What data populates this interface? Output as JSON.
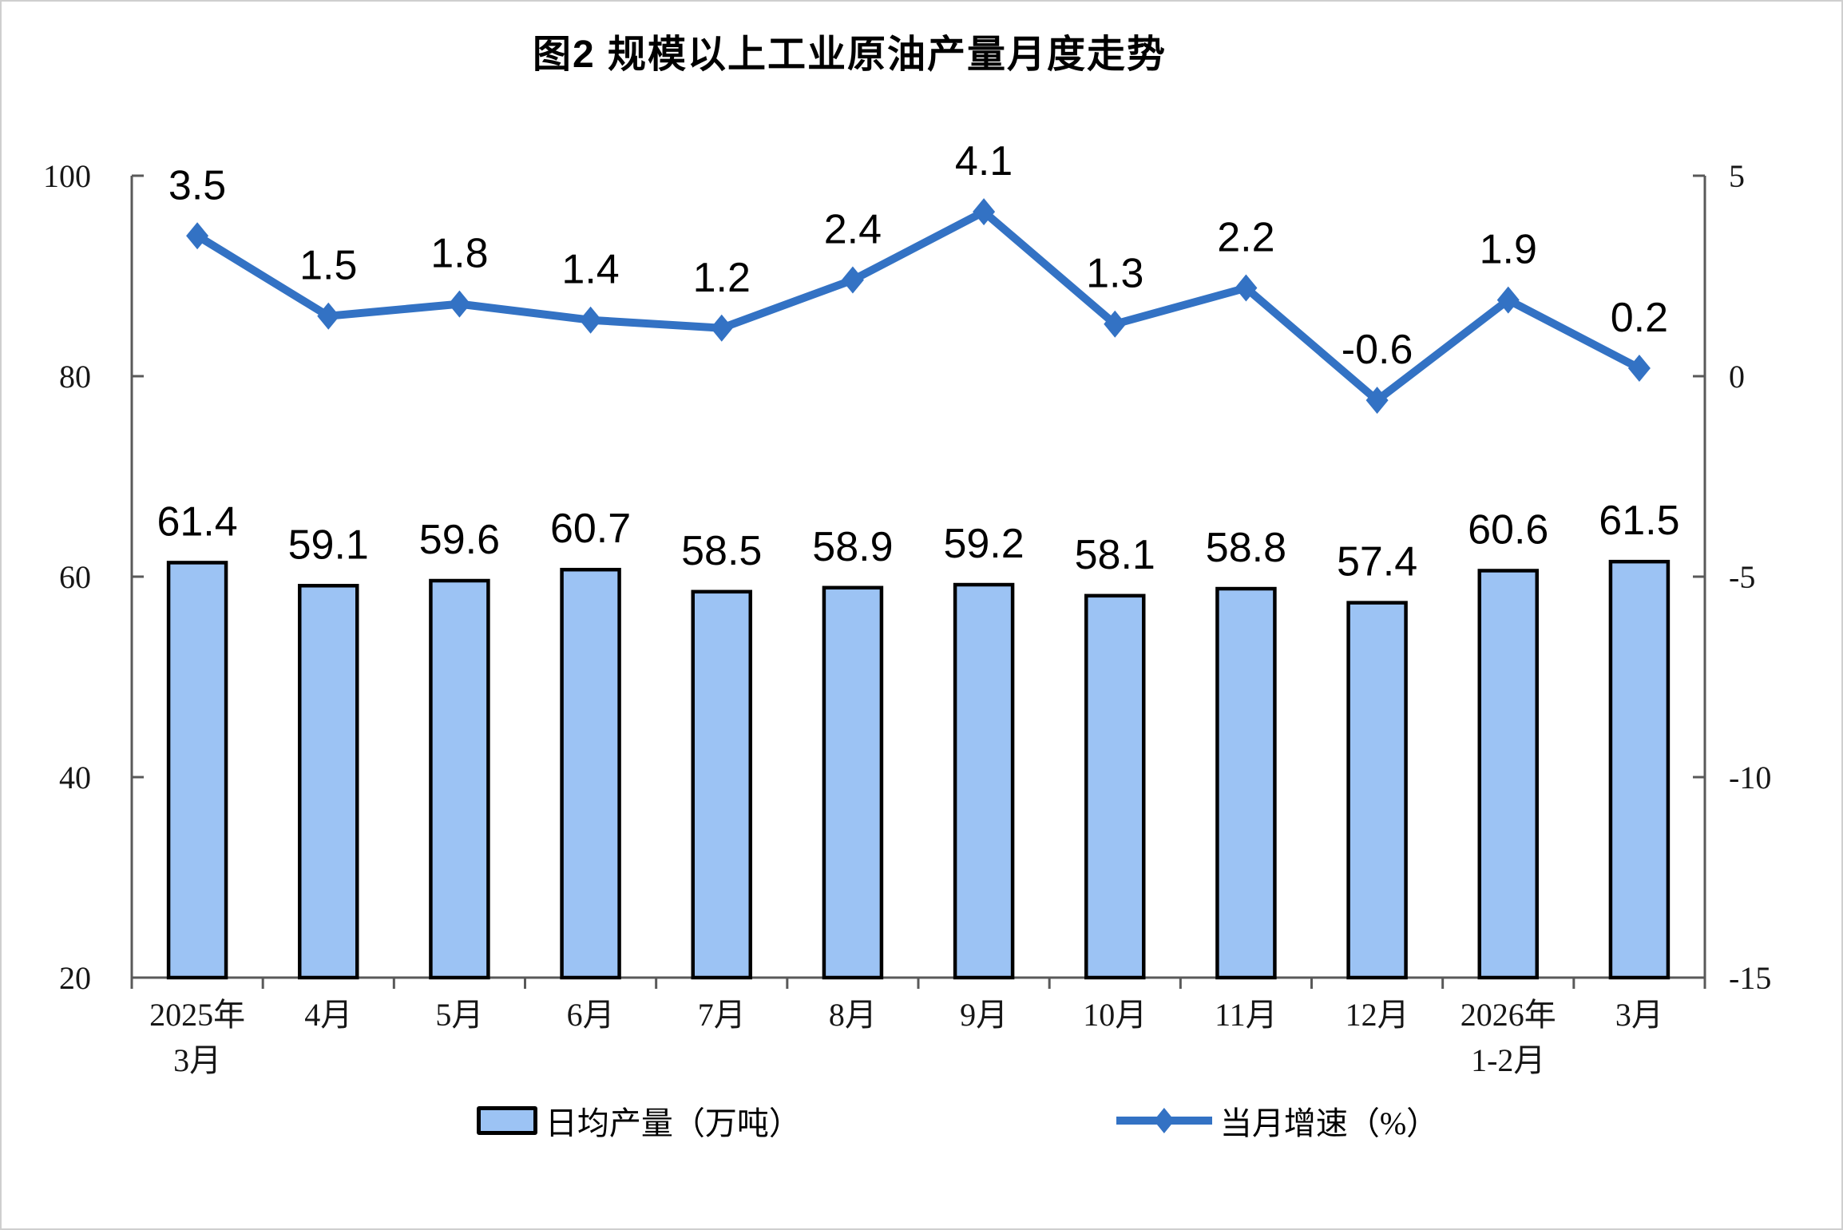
{
  "title": "图2 规模以上工业原油产量月度走势",
  "colors": {
    "bar_fill": "#9CC3F4",
    "bar_border": "#000000",
    "line": "#3372C4",
    "axis": "#595959"
  },
  "legend": {
    "bar_label": "日均产量（万吨）",
    "line_label": "当月增速（%）"
  },
  "chart_data": {
    "type": "combo-bar-line",
    "title": "图2 规模以上工业原油产量月度走势",
    "categories": [
      "2025年\n3月",
      "4月",
      "5月",
      "6月",
      "7月",
      "8月",
      "9月",
      "10月",
      "11月",
      "12月",
      "2026年\n1-2月",
      "3月"
    ],
    "series": [
      {
        "name": "日均产量（万吨）",
        "type": "bar",
        "axis": "left",
        "values": [
          61.4,
          59.1,
          59.6,
          60.7,
          58.5,
          58.9,
          59.2,
          58.1,
          58.8,
          57.4,
          60.6,
          61.5
        ]
      },
      {
        "name": "当月增速（%）",
        "type": "line",
        "axis": "right",
        "values": [
          3.5,
          1.5,
          1.8,
          1.4,
          1.2,
          2.4,
          4.1,
          1.3,
          2.2,
          -0.6,
          1.9,
          0.2
        ]
      }
    ],
    "left_axis": {
      "min": 20,
      "max": 100,
      "ticks": [
        100,
        80,
        60,
        40,
        20
      ]
    },
    "right_axis": {
      "min": -15,
      "max": 5,
      "ticks": [
        5,
        0,
        -5,
        -10,
        -15
      ]
    },
    "grid": false,
    "legend_position": "bottom",
    "data_labels": true
  }
}
